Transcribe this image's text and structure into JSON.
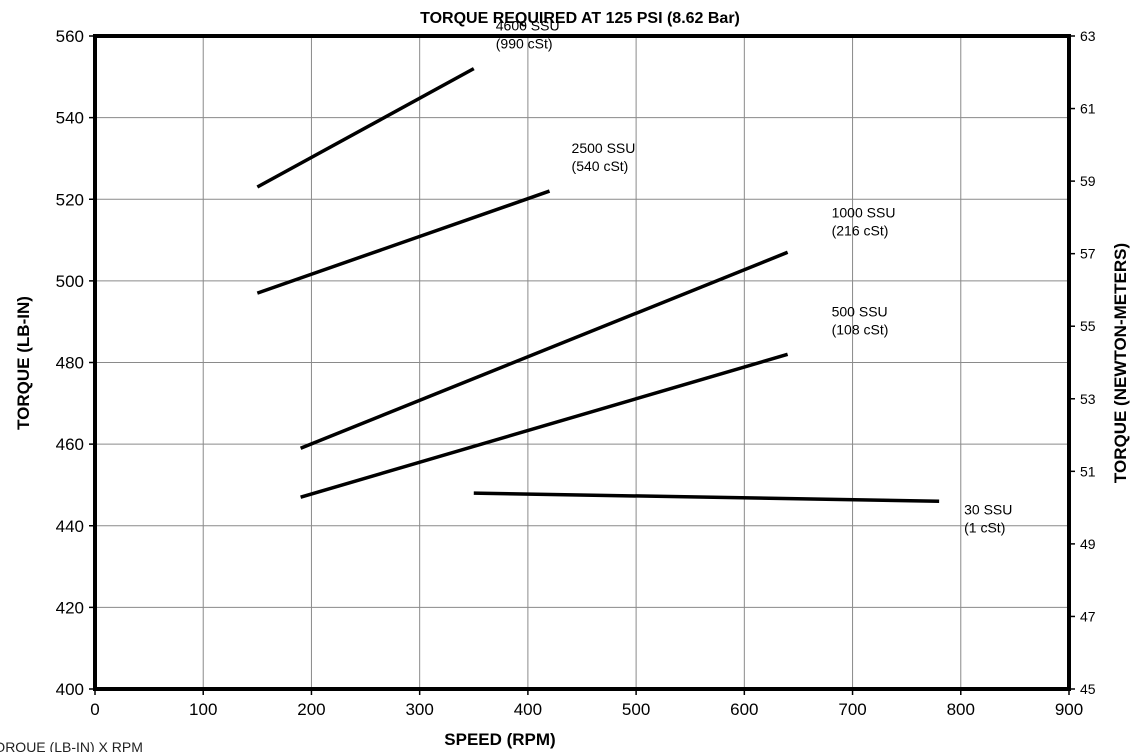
{
  "chart_data": {
    "type": "line",
    "title": "TORQUE REQUIRED AT 125 PSI (8.62 Bar)",
    "xlabel": "SPEED (RPM)",
    "ylabel": "TORQUE (LB-IN)",
    "y2label": "TORQUE (NEWTON-METERS)",
    "caption": "TORQUE (LB-IN) X RPM",
    "xlim": [
      0,
      900
    ],
    "ylim": [
      400,
      560
    ],
    "y2lim": [
      45,
      63
    ],
    "x_ticks": [
      "0",
      "100",
      "200",
      "300",
      "400",
      "500",
      "600",
      "700",
      "800",
      "900"
    ],
    "y_ticks": [
      "400",
      "420",
      "440",
      "460",
      "480",
      "500",
      "520",
      "540",
      "560"
    ],
    "y2_ticks": [
      "45",
      "47",
      "49",
      "51",
      "53",
      "55",
      "57",
      "59",
      "61",
      "63"
    ],
    "grid": true,
    "series": [
      {
        "name": "4600 SSU",
        "sub": "(990 cSt)",
        "x": [
          150,
          350
        ],
        "y": [
          523,
          552
        ]
      },
      {
        "name": "2500 SSU",
        "sub": "(540 cSt)",
        "x": [
          150,
          420
        ],
        "y": [
          497,
          522
        ]
      },
      {
        "name": "1000 SSU",
        "sub": "(216 cSt)",
        "x": [
          190,
          640
        ],
        "y": [
          459,
          507
        ]
      },
      {
        "name": "500 SSU",
        "sub": "(108 cSt)",
        "x": [
          190,
          640
        ],
        "y": [
          447,
          482
        ]
      },
      {
        "name": "30 SSU",
        "sub": "(1 cSt)",
        "x": [
          350,
          780
        ],
        "y": [
          448,
          446
        ]
      }
    ]
  }
}
